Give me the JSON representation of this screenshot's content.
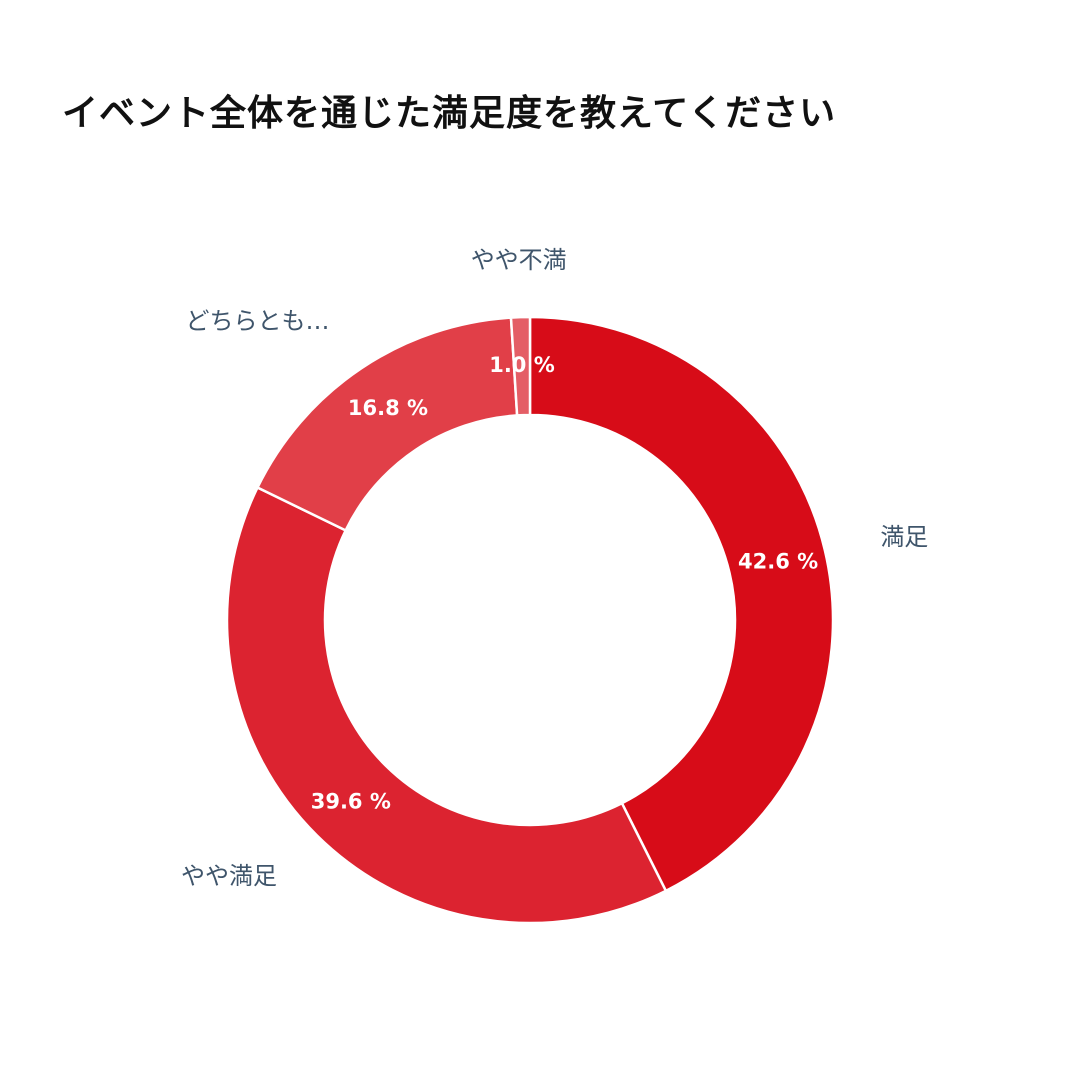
{
  "chart_data": {
    "type": "pie",
    "donut": true,
    "title": "イベント全体を通じた満足度を教えてください",
    "unit": "%",
    "slices": [
      {
        "name": "満足",
        "label": "満足",
        "value": 42.6,
        "value_label": "42.6 %",
        "color": "#d70c18"
      },
      {
        "name": "やや満足",
        "label": "やや満足",
        "value": 39.6,
        "value_label": "39.6 %",
        "color": "#dc2330"
      },
      {
        "name": "どちらとも…",
        "label": "どちらとも…",
        "value": 16.8,
        "value_label": "16.8 %",
        "color": "#e13f48"
      },
      {
        "name": "やや不満",
        "label": "やや不満",
        "value": 1.0,
        "value_label": "1.0 %",
        "color": "#e45e66"
      }
    ],
    "start_angle_deg": 0,
    "direction": "clockwise",
    "legend": "none"
  }
}
